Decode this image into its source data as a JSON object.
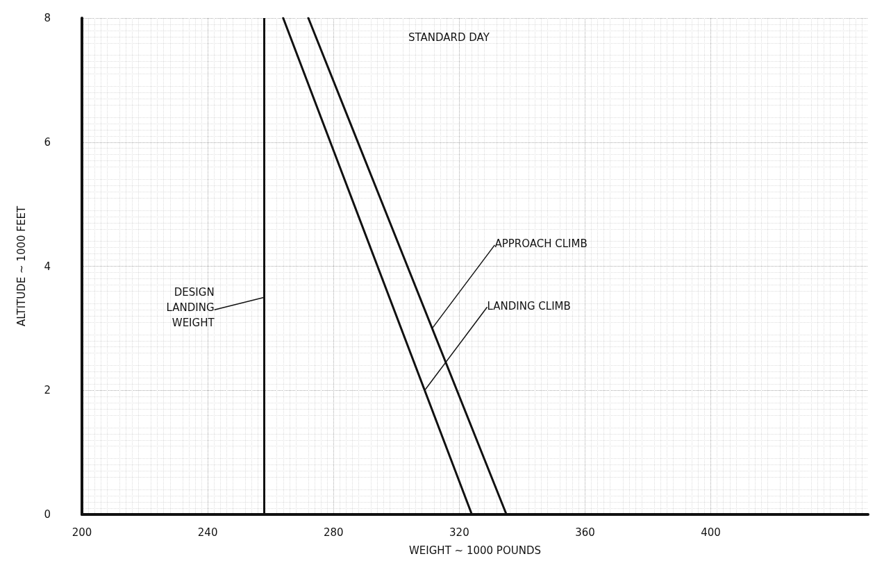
{
  "chart_data": {
    "type": "line",
    "xlabel": "WEIGHT ~ 1000 POUNDS",
    "ylabel": "ALTITUDE ~ 1000 FEET",
    "xlim": [
      200,
      450
    ],
    "xticks": [
      200,
      240,
      280,
      320,
      360,
      400
    ],
    "ylim": [
      0,
      8
    ],
    "yticks": [
      0,
      2,
      4,
      6,
      8
    ],
    "grid": true,
    "marker": "none",
    "line_style": "solid",
    "series": [
      {
        "color": "#111111",
        "x": [
          264,
          324
        ],
        "values": [
          8,
          0
        ]
      },
      {
        "color": "#111111",
        "x": [
          272,
          335
        ],
        "values": [
          8,
          0
        ]
      }
    ],
    "ref_lines": [
      {
        "axis": "x",
        "value": 258,
        "color": "#111111"
      }
    ],
    "annotations": [
      "STANDARD DAY",
      {
        "text": "DESIGN\nLANDING\nWEIGHT",
        "x": 258,
        "y": 3.5
      },
      {
        "text": "APPROACH CLIMB",
        "x": 311.4,
        "y": 3
      },
      {
        "text": "LANDING CLIMB",
        "x": 309,
        "y": 2
      }
    ]
  }
}
